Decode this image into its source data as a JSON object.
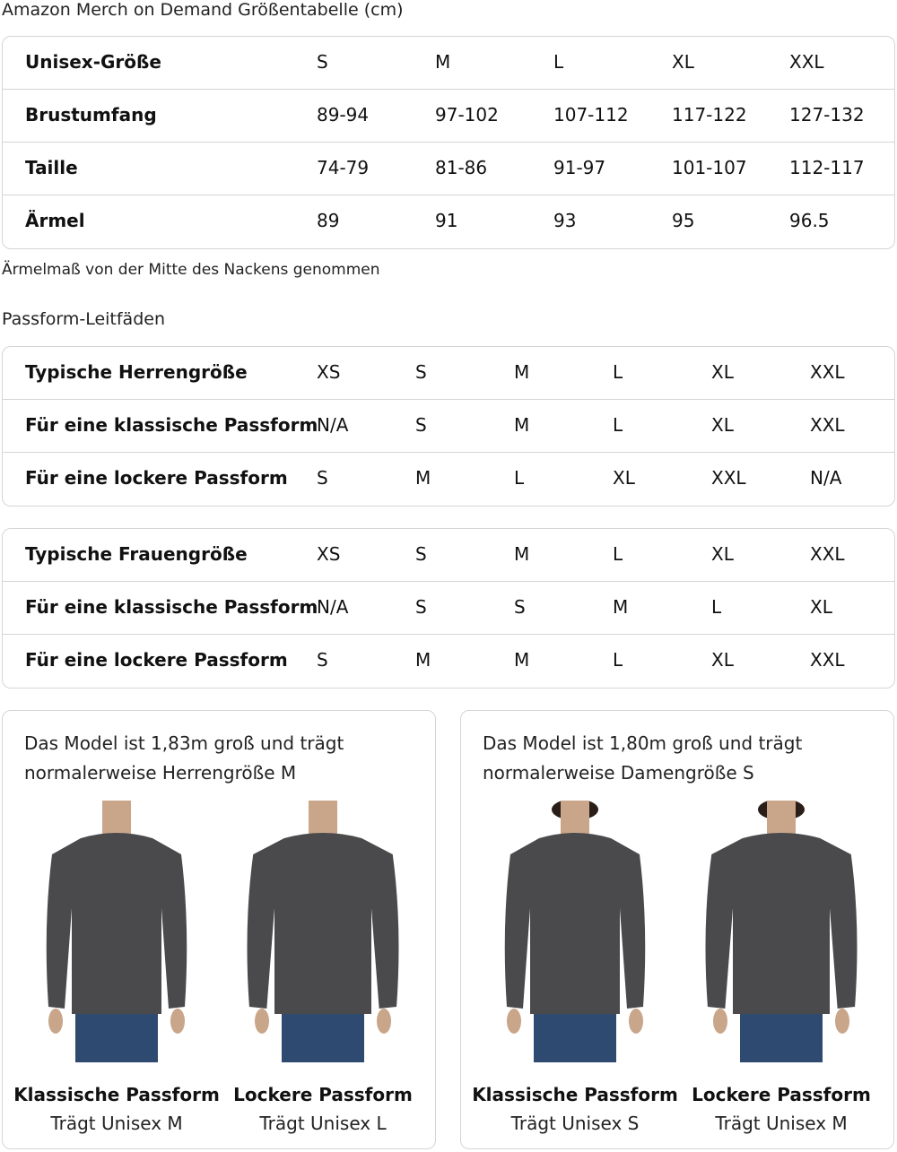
{
  "title": "Amazon Merch on Demand Größentabelle (cm)",
  "size_table": {
    "rows": [
      {
        "label": "Unisex-Größe",
        "values": [
          "S",
          "M",
          "L",
          "XL",
          "XXL"
        ]
      },
      {
        "label": "Brustumfang",
        "values": [
          "89-94",
          "97-102",
          "107-112",
          "117-122",
          "127-132"
        ]
      },
      {
        "label": "Taille",
        "values": [
          "74-79",
          "81-86",
          "91-97",
          "101-107",
          "112-117"
        ]
      },
      {
        "label": "Ärmel",
        "values": [
          "89",
          "91",
          "93",
          "95",
          "96.5"
        ]
      }
    ]
  },
  "sleeve_note": "Ärmelmaß von der Mitte des Nackens genommen",
  "fit_title": "Passform-Leitfäden",
  "men_table": {
    "rows": [
      {
        "label": "Typische Herrengröße",
        "values": [
          "XS",
          "S",
          "M",
          "L",
          "XL",
          "XXL"
        ]
      },
      {
        "label": "Für eine klassische Passform",
        "values": [
          "N/A",
          "S",
          "M",
          "L",
          "XL",
          "XXL"
        ]
      },
      {
        "label": "Für eine lockere Passform",
        "values": [
          "S",
          "M",
          "L",
          "XL",
          "XXL",
          "N/A"
        ]
      }
    ]
  },
  "women_table": {
    "rows": [
      {
        "label": "Typische Frauengröße",
        "values": [
          "XS",
          "S",
          "M",
          "L",
          "XL",
          "XXL"
        ]
      },
      {
        "label": "Für eine klassische Passform",
        "values": [
          "N/A",
          "S",
          "S",
          "M",
          "L",
          "XL"
        ]
      },
      {
        "label": "Für eine lockere Passform",
        "values": [
          "S",
          "M",
          "M",
          "L",
          "XL",
          "XXL"
        ]
      }
    ]
  },
  "cards": [
    {
      "caption1": "Das Model ist 1,83m groß und trägt",
      "caption2": "normalerweise Herrengröße M",
      "figures": [
        {
          "fit": "Klassische Passform",
          "wears": "Trägt Unisex M"
        },
        {
          "fit": "Lockere Passform",
          "wears": "Trägt Unisex L"
        }
      ]
    },
    {
      "caption1": "Das Model ist 1,80m groß und trägt",
      "caption2": "normalerweise Damengröße S",
      "figures": [
        {
          "fit": "Klassische Passform",
          "wears": "Trägt Unisex S"
        },
        {
          "fit": "Lockere Passform",
          "wears": "Trägt Unisex M"
        }
      ]
    }
  ],
  "colors": {
    "sweater": "#4a4a4c",
    "jeans": "#2f4a70",
    "skin": "#c9a58a",
    "border": "#d5d5d5"
  }
}
